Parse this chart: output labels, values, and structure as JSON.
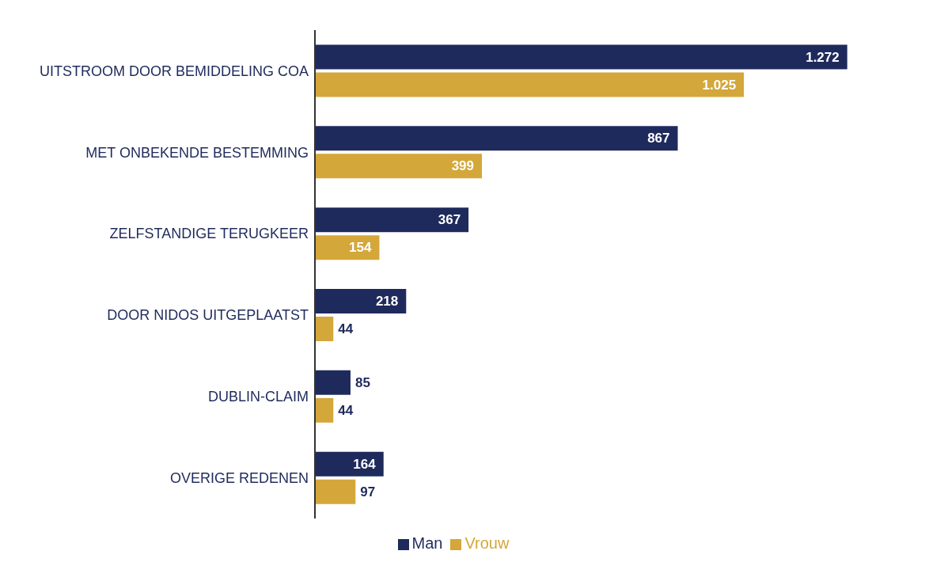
{
  "chart_data": {
    "type": "bar",
    "orientation": "horizontal",
    "categories": [
      "UITSTROOM DOOR BEMIDDELING COA",
      "MET ONBEKENDE BESTEMMING",
      "ZELFSTANDIGE TERUGKEER",
      "DOOR NIDOS UITGEPLAATST",
      "DUBLIN-CLAIM",
      "OVERIGE REDENEN"
    ],
    "series": [
      {
        "name": "Man",
        "color": "#1f2a5c",
        "values": [
          1272,
          867,
          367,
          218,
          85,
          164
        ],
        "value_labels": [
          "1.272",
          "867",
          "367",
          "218",
          "85",
          "164"
        ]
      },
      {
        "name": "Vrouw",
        "color": "#d4a73a",
        "values": [
          1025,
          399,
          154,
          44,
          44,
          97
        ],
        "value_labels": [
          "1.025",
          "399",
          "154",
          "44",
          "44",
          "97"
        ]
      }
    ],
    "legend": "bottom",
    "tick_labels": "y"
  }
}
